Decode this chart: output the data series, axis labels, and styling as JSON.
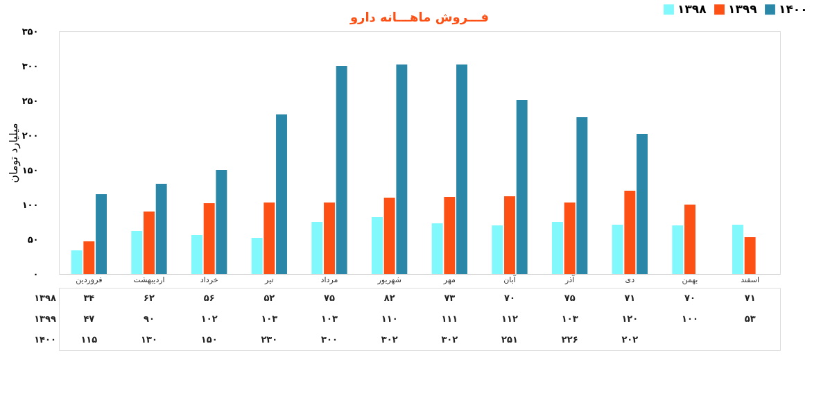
{
  "chart_data": {
    "type": "bar",
    "title": "فـــروش ماهـــانه دارو",
    "ylabel": "میلیارد تومان",
    "categories": [
      "فروردین",
      "اردیبهشت",
      "خرداد",
      "تیر",
      "مرداد",
      "شهریور",
      "مهر",
      "آبان",
      "آذر",
      "دی",
      "بهمن",
      "اسفند"
    ],
    "series": [
      {
        "name": "۱۳۹۸",
        "color": "#80f8fc",
        "values": [
          34,
          62,
          56,
          52,
          75,
          82,
          73,
          70,
          75,
          71,
          70,
          71
        ],
        "value_labels": [
          "۳۴",
          "۶۲",
          "۵۶",
          "۵۲",
          "۷۵",
          "۸۲",
          "۷۳",
          "۷۰",
          "۷۵",
          "۷۱",
          "۷۰",
          "۷۱"
        ]
      },
      {
        "name": "۱۳۹۹",
        "color": "#fc5014",
        "values": [
          47,
          90,
          102,
          103,
          103,
          110,
          111,
          112,
          103,
          120,
          100,
          53
        ],
        "value_labels": [
          "۴۷",
          "۹۰",
          "۱۰۲",
          "۱۰۳",
          "۱۰۳",
          "۱۱۰",
          "۱۱۱",
          "۱۱۲",
          "۱۰۳",
          "۱۲۰",
          "۱۰۰",
          "۵۳"
        ]
      },
      {
        "name": "۱۴۰۰",
        "color": "#2a87a8",
        "values": [
          115,
          130,
          150,
          230,
          300,
          302,
          302,
          251,
          226,
          202,
          null,
          null
        ],
        "value_labels": [
          "۱۱۵",
          "۱۳۰",
          "۱۵۰",
          "۲۳۰",
          "۳۰۰",
          "۳۰۲",
          "۳۰۲",
          "۲۵۱",
          "۲۲۶",
          "۲۰۲",
          null,
          null
        ]
      }
    ],
    "ylim": [
      0,
      350
    ],
    "yticks": [
      {
        "value": 0,
        "label": "۰"
      },
      {
        "value": 50,
        "label": "۵۰"
      },
      {
        "value": 100,
        "label": "۱۰۰"
      },
      {
        "value": 150,
        "label": "۱۵۰"
      },
      {
        "value": 200,
        "label": "۲۰۰"
      },
      {
        "value": 250,
        "label": "۲۵۰"
      },
      {
        "value": 300,
        "label": "۳۰۰"
      },
      {
        "value": 350,
        "label": "۳۵۰"
      }
    ],
    "grid": false,
    "legend": "top right"
  }
}
